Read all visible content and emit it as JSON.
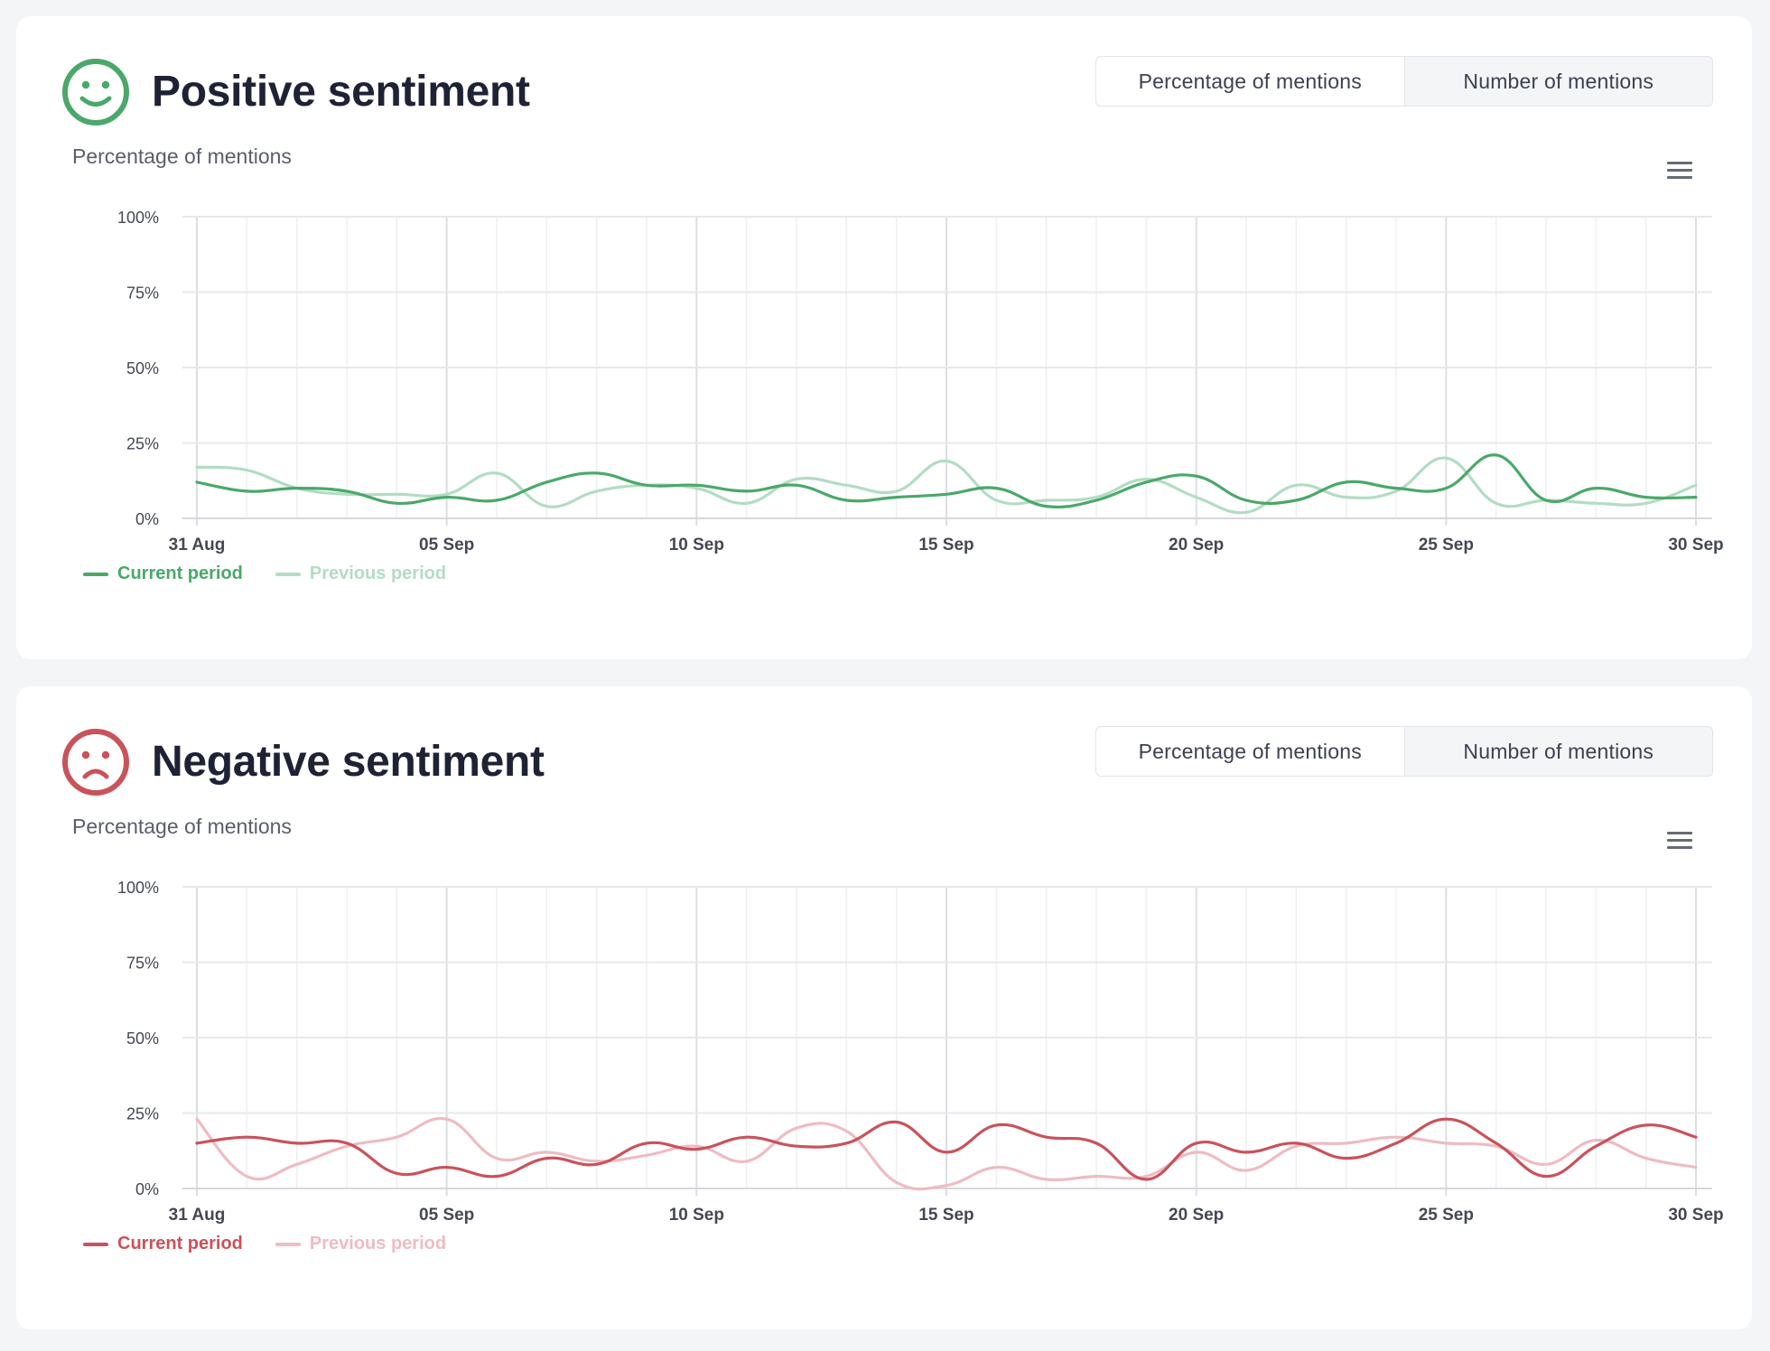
{
  "colors": {
    "positive_current": "#4aa86a",
    "positive_previous": "#b3dcc3",
    "negative_current": "#c9525b",
    "negative_previous": "#eebcc2",
    "grid": "#e6e8ec",
    "axis_text": "#444853"
  },
  "positive": {
    "icon": "smiley-icon",
    "title": "Positive sentiment",
    "toggle": {
      "options": [
        "Percentage of mentions",
        "Number of mentions"
      ],
      "selected": "Percentage of mentions"
    },
    "menu_icon": "hamburger-menu-icon",
    "legend": {
      "current": "Current period",
      "previous": "Previous period"
    }
  },
  "negative": {
    "icon": "frown-icon",
    "title": "Negative sentiment",
    "toggle": {
      "options": [
        "Percentage of mentions",
        "Number of mentions"
      ],
      "selected": "Percentage of mentions"
    },
    "menu_icon": "hamburger-menu-icon",
    "legend": {
      "current": "Current period",
      "previous": "Previous period"
    }
  },
  "chart_data": [
    {
      "type": "line",
      "title": "",
      "ylabel": "Percentage of mentions",
      "xlabel": "",
      "ylim": [
        0,
        100
      ],
      "y_ticks": [
        "0%",
        "25%",
        "50%",
        "75%",
        "100%"
      ],
      "x_tick_labels": [
        "31 Aug",
        "05 Sep",
        "10 Sep",
        "15 Sep",
        "20 Sep",
        "25 Sep",
        "30 Sep"
      ],
      "x": [
        "31 Aug",
        "01 Sep",
        "02 Sep",
        "03 Sep",
        "04 Sep",
        "05 Sep",
        "06 Sep",
        "07 Sep",
        "08 Sep",
        "09 Sep",
        "10 Sep",
        "11 Sep",
        "12 Sep",
        "13 Sep",
        "14 Sep",
        "15 Sep",
        "16 Sep",
        "17 Sep",
        "18 Sep",
        "19 Sep",
        "20 Sep",
        "21 Sep",
        "22 Sep",
        "23 Sep",
        "24 Sep",
        "25 Sep",
        "26 Sep",
        "27 Sep",
        "28 Sep",
        "29 Sep",
        "30 Sep"
      ],
      "grid": true,
      "legend_position": "bottom-left",
      "series": [
        {
          "name": "Current period",
          "values": [
            12,
            9,
            10,
            9,
            5,
            7,
            6,
            12,
            15,
            11,
            11,
            9,
            11,
            6,
            7,
            8,
            10,
            4,
            6,
            12,
            14,
            6,
            6,
            12,
            10,
            10,
            21,
            6,
            10,
            7,
            7
          ]
        },
        {
          "name": "Previous period",
          "values": [
            17,
            16,
            10,
            8,
            8,
            8,
            15,
            4,
            9,
            11,
            10,
            5,
            13,
            11,
            9,
            19,
            6,
            6,
            7,
            13,
            7,
            2,
            11,
            7,
            9,
            20,
            5,
            6,
            5,
            5,
            11
          ]
        }
      ]
    },
    {
      "type": "line",
      "title": "",
      "ylabel": "Percentage of mentions",
      "xlabel": "",
      "ylim": [
        0,
        100
      ],
      "y_ticks": [
        "0%",
        "25%",
        "50%",
        "75%",
        "100%"
      ],
      "x_tick_labels": [
        "31 Aug",
        "05 Sep",
        "10 Sep",
        "15 Sep",
        "20 Sep",
        "25 Sep",
        "30 Sep"
      ],
      "x": [
        "31 Aug",
        "01 Sep",
        "02 Sep",
        "03 Sep",
        "04 Sep",
        "05 Sep",
        "06 Sep",
        "07 Sep",
        "08 Sep",
        "09 Sep",
        "10 Sep",
        "11 Sep",
        "12 Sep",
        "13 Sep",
        "14 Sep",
        "15 Sep",
        "16 Sep",
        "17 Sep",
        "18 Sep",
        "19 Sep",
        "20 Sep",
        "21 Sep",
        "22 Sep",
        "23 Sep",
        "24 Sep",
        "25 Sep",
        "26 Sep",
        "27 Sep",
        "28 Sep",
        "29 Sep",
        "30 Sep"
      ],
      "grid": true,
      "legend_position": "bottom-left",
      "series": [
        {
          "name": "Current period",
          "values": [
            15,
            17,
            15,
            15,
            5,
            7,
            4,
            10,
            8,
            15,
            13,
            17,
            14,
            15,
            22,
            12,
            21,
            17,
            15,
            3,
            15,
            12,
            15,
            10,
            15,
            23,
            15,
            4,
            14,
            21,
            17
          ]
        },
        {
          "name": "Previous period",
          "values": [
            23,
            4,
            8,
            14,
            17,
            23,
            10,
            12,
            9,
            11,
            14,
            9,
            20,
            19,
            2,
            1,
            7,
            3,
            4,
            4,
            12,
            6,
            14,
            15,
            17,
            15,
            14,
            8,
            16,
            10,
            7
          ]
        }
      ]
    }
  ]
}
